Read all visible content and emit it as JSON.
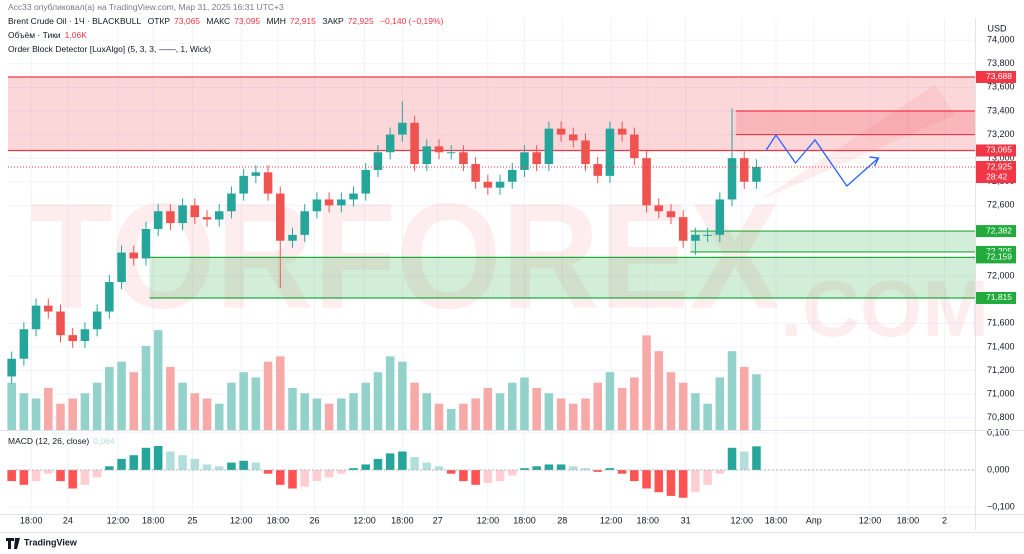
{
  "header": {
    "published": "Acc33 опубликовал(а) на TradingView.com, Мар 31, 2025 16:31 UTC+3",
    "symbol": "Brent Crude Oil · 1Ч · BLACKBULL",
    "open_label": "ОТКР",
    "open": "73,065",
    "high_label": "МАКС",
    "high": "73,095",
    "low_label": "МИН",
    "low": "72,915",
    "close_label": "ЗАКР",
    "close": "72,925",
    "change": "−0,140 (−0,19%)",
    "volume_title": "Объём · Тики",
    "volume_value": "1,06K",
    "indicator": "Order Block Detector [LuxAlgo] (5, 3, 3, ——, 1, Wick)",
    "currency": "USD",
    "footer": "TradingView"
  },
  "chart_data": {
    "type": "candlestick",
    "grid": true,
    "up_color": "#26a69a",
    "down_color": "#ef5350",
    "volume_up_color": "#92d2ca",
    "volume_down_color": "#f7a9a7",
    "watermark": "TORFOREX",
    "watermark_suffix": ".COM",
    "xlim": [
      -0.3,
      78.9
    ],
    "xticks": [
      {
        "value": 1.6,
        "label": "18:00"
      },
      {
        "value": 4.6,
        "label": "24"
      },
      {
        "value": 8.7,
        "label": "12:00"
      },
      {
        "value": 11.6,
        "label": "18:00"
      },
      {
        "value": 14.8,
        "label": "25"
      },
      {
        "value": 18.8,
        "label": "12:00"
      },
      {
        "value": 21.8,
        "label": "18:00"
      },
      {
        "value": 24.8,
        "label": "26"
      },
      {
        "value": 28.9,
        "label": "12:00"
      },
      {
        "value": 32,
        "label": "18:00"
      },
      {
        "value": 34.9,
        "label": "27"
      },
      {
        "value": 39,
        "label": "12:00"
      },
      {
        "value": 42,
        "label": "18:00"
      },
      {
        "value": 45.1,
        "label": "28"
      },
      {
        "value": 49.1,
        "label": "12:00"
      },
      {
        "value": 52.1,
        "label": "18:00"
      },
      {
        "value": 55.2,
        "label": "31"
      },
      {
        "value": 59.8,
        "label": "12:00"
      },
      {
        "value": 62.6,
        "label": "18:00"
      },
      {
        "value": 65.7,
        "label": "Апр"
      },
      {
        "value": 70.3,
        "label": "12:00"
      },
      {
        "value": 73.4,
        "label": "18:00"
      },
      {
        "value": 76.4,
        "label": "2"
      }
    ],
    "ylim": [
      70696,
      74171
    ],
    "yticks": [
      {
        "value": 74000,
        "label": "74,000"
      },
      {
        "value": 73800,
        "label": "73,800"
      },
      {
        "value": 73600,
        "label": "73,600"
      },
      {
        "value": 73400,
        "label": "73,400"
      },
      {
        "value": 73200,
        "label": "73,200"
      },
      {
        "value": 73000,
        "label": "73,000"
      },
      {
        "value": 72800,
        "label": "72,800"
      },
      {
        "value": 72600,
        "label": "72,600"
      },
      {
        "value": 72000,
        "label": "72,000"
      },
      {
        "value": 71600,
        "label": "71,600"
      },
      {
        "value": 71400,
        "label": "71,400"
      },
      {
        "value": 71200,
        "label": "71,200"
      },
      {
        "value": 71000,
        "label": "71,000"
      },
      {
        "value": 70800,
        "label": "70,800"
      }
    ],
    "open": [
      71150,
      71300,
      71550,
      71750,
      71700,
      71500,
      71450,
      71550,
      71700,
      71950,
      72200,
      72150,
      72400,
      72550,
      72450,
      72600,
      72500,
      72480,
      72550,
      72700,
      72850,
      72880,
      72700,
      72300,
      72350,
      72550,
      72650,
      72600,
      72650,
      72700,
      72900,
      73050,
      73200,
      73300,
      72950,
      73100,
      73050,
      73050,
      72950,
      72800,
      72750,
      72800,
      72900,
      73050,
      72950,
      73250,
      73200,
      73150,
      72950,
      72850,
      73250,
      73200,
      73000,
      72600,
      72550,
      72500,
      72300,
      72350,
      72350,
      72650,
      73000,
      72800
    ],
    "high": [
      71360,
      71610,
      71810,
      71810,
      71760,
      71560,
      71610,
      71760,
      72010,
      72260,
      72260,
      72460,
      72610,
      72610,
      72660,
      72660,
      72560,
      72610,
      72760,
      72910,
      72940,
      72940,
      72760,
      72410,
      72610,
      72710,
      72710,
      72710,
      72760,
      72960,
      73110,
      73260,
      73480,
      73360,
      73160,
      73160,
      73110,
      73110,
      73010,
      72860,
      72860,
      72960,
      73110,
      73110,
      73310,
      73310,
      73260,
      73210,
      73010,
      73310,
      73310,
      73260,
      73060,
      72660,
      72610,
      72560,
      72410,
      72410,
      72710,
      73420,
      73060,
      72990
    ],
    "low": [
      71090,
      71240,
      71490,
      71640,
      71440,
      71390,
      71390,
      71490,
      71640,
      71890,
      72090,
      72090,
      72340,
      72390,
      72390,
      72440,
      72420,
      72420,
      72490,
      72640,
      72790,
      72640,
      71900,
      72240,
      72290,
      72490,
      72540,
      72540,
      72590,
      72640,
      72840,
      72990,
      73140,
      72890,
      72890,
      72990,
      72990,
      72890,
      72740,
      72690,
      72690,
      72740,
      72840,
      72890,
      72890,
      73140,
      73090,
      72890,
      72790,
      72790,
      73140,
      72940,
      72540,
      72490,
      72440,
      72240,
      72180,
      72290,
      72290,
      72590,
      72740,
      72740
    ],
    "close": [
      71300,
      71550,
      71750,
      71700,
      71500,
      71450,
      71550,
      71700,
      71950,
      72200,
      72150,
      72400,
      72550,
      72450,
      72600,
      72500,
      72480,
      72550,
      72700,
      72850,
      72880,
      72700,
      72300,
      72350,
      72550,
      72650,
      72600,
      72650,
      72700,
      72900,
      73050,
      73200,
      73300,
      72950,
      73100,
      73050,
      73050,
      72950,
      72800,
      72750,
      72800,
      72900,
      73050,
      72950,
      73250,
      73200,
      73150,
      72950,
      72850,
      73250,
      73200,
      73000,
      72600,
      72550,
      72500,
      72300,
      72350,
      72350,
      72650,
      73000,
      72800,
      72925
    ],
    "volume_lim": [
      0,
      7800
    ],
    "volume": [
      900,
      700,
      600,
      800,
      500,
      600,
      700,
      900,
      1200,
      1300,
      1100,
      1600,
      1900,
      1200,
      900,
      700,
      600,
      500,
      900,
      1100,
      1000,
      1300,
      1400,
      800,
      700,
      600,
      500,
      600,
      700,
      900,
      1100,
      1400,
      1300,
      900,
      700,
      500,
      400,
      500,
      600,
      800,
      700,
      900,
      1000,
      800,
      700,
      600,
      500,
      600,
      900,
      1100,
      800,
      1000,
      1800,
      1500,
      1100,
      900,
      700,
      500,
      1000,
      1500,
      1200,
      1060
    ],
    "zones": [
      {
        "top": 73688,
        "bottom": 73065,
        "x_start": -0.3,
        "color": "#f23645",
        "top_label": "73,688",
        "bottom_label": "73,065"
      },
      {
        "top": 73400,
        "bottom": 73200,
        "x_start": 59.3,
        "color": "#f23645"
      },
      {
        "top": 72382,
        "bottom": 72205,
        "x_start": 55.6,
        "color": "#22ab3c",
        "top_label": "72,382",
        "bottom_label": "72,205"
      },
      {
        "top": 72159,
        "bottom": 71815,
        "x_start": 11.3,
        "color": "#22ab3c",
        "top_label": "72,159",
        "bottom_label": "71,815"
      }
    ],
    "last": {
      "value": 72925,
      "label": "72,925",
      "countdown": "28:42",
      "color": "#f23645"
    },
    "projection": {
      "x": [
        61.8,
        62.6,
        64.2,
        65.8,
        68.4,
        71
      ],
      "y": [
        73069,
        73196,
        72959,
        73154,
        72764,
        73001
      ],
      "color": "#2962ff"
    },
    "macd": {
      "title": "MACD (12, 26, close)",
      "value_label": "0,064",
      "ylim": [
        -0.1189,
        0.1
      ],
      "yticks": [
        {
          "value": 0.1,
          "label": "0,100"
        },
        {
          "value": 0,
          "label": "0,000"
        },
        {
          "value": -0.1,
          "label": "−0,100"
        }
      ],
      "colors": [
        "#26a69a",
        "#b2dfdb",
        "#ff5252",
        "#ffcdd2"
      ],
      "values": [
        -0.03,
        -0.04,
        -0.03,
        -0.01,
        -0.03,
        -0.05,
        -0.04,
        -0.02,
        0.01,
        0.03,
        0.04,
        0.06,
        0.065,
        0.05,
        0.04,
        0.03,
        0.015,
        0.01,
        0.02,
        0.025,
        0.02,
        -0.01,
        -0.04,
        -0.05,
        -0.045,
        -0.03,
        -0.02,
        -0.01,
        0.005,
        0.015,
        0.03,
        0.045,
        0.05,
        0.035,
        0.02,
        0.01,
        -0.01,
        -0.03,
        -0.04,
        -0.035,
        -0.03,
        -0.015,
        0.005,
        0.01,
        0.015,
        0.015,
        0.01,
        0.005,
        -0.005,
        0.005,
        -0.01,
        -0.03,
        -0.05,
        -0.06,
        -0.07,
        -0.075,
        -0.06,
        -0.04,
        -0.01,
        0.06,
        0.05,
        0.064
      ]
    }
  }
}
